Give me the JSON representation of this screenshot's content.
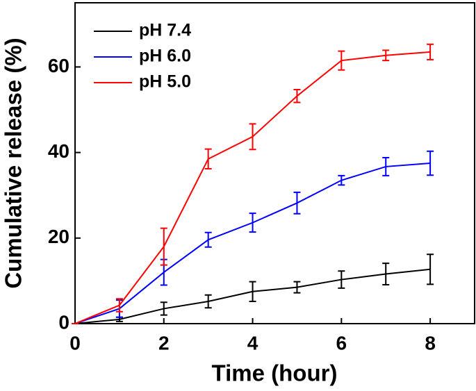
{
  "chart_data": {
    "type": "line",
    "x_label": "Time (hour)",
    "y_label": "Cumulative release (%)",
    "x": [
      0,
      1,
      2,
      3,
      4,
      5,
      6,
      7,
      8
    ],
    "series": [
      {
        "name": "pH 7.4",
        "color": "#000000",
        "values": [
          0,
          1,
          3.5,
          5.2,
          7.5,
          8.5,
          10.3,
          11.6,
          12.7
        ],
        "errors": [
          0,
          0.5,
          1.5,
          1.5,
          2.3,
          1.3,
          2.0,
          2.5,
          3.5
        ]
      },
      {
        "name": "pH 6.0",
        "color": "#0000ff",
        "values": [
          0,
          3.5,
          12,
          19.6,
          23.6,
          28.2,
          33.5,
          36.7,
          37.5
        ],
        "errors": [
          0,
          2,
          3,
          1.7,
          2.2,
          2.5,
          1.1,
          2.1,
          2.8
        ]
      },
      {
        "name": "pH 5.0",
        "color": "#ff0000",
        "values": [
          0,
          4.3,
          18,
          38.5,
          43.7,
          53.2,
          61.5,
          62.7,
          63.5
        ],
        "errors": [
          0,
          1.5,
          4.3,
          2.3,
          3.0,
          1.5,
          2.2,
          1.2,
          1.8
        ]
      }
    ],
    "xlim": [
      0,
      9
    ],
    "xticks": [
      0,
      2,
      4,
      6,
      8
    ],
    "ylim": [
      0,
      75
    ],
    "yticks": [
      0,
      20,
      40,
      60
    ],
    "grid": false,
    "legend": "upper left"
  }
}
